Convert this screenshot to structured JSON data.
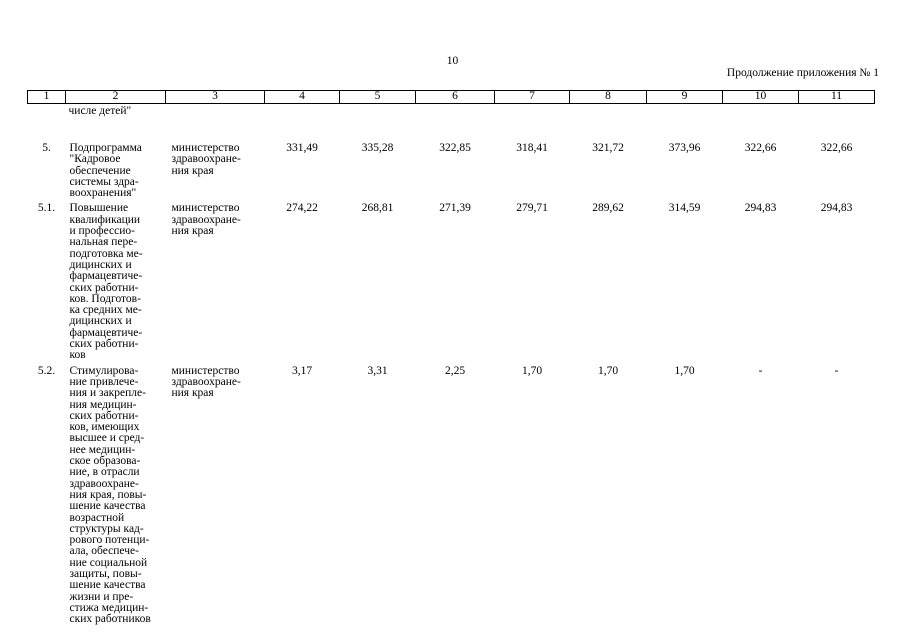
{
  "page": {
    "number": "10",
    "continuation_note": "Продолжение приложения № 1"
  },
  "table": {
    "column_numbers": [
      "1",
      "2",
      "3",
      "4",
      "5",
      "6",
      "7",
      "8",
      "9",
      "10",
      "11"
    ],
    "carryover_text": "числе детей\"",
    "rows": [
      {
        "num": "5.",
        "name": "Подпрограмма\n\"Кадровое\nобеспечение\nсистемы здра-\nвоохранения\"",
        "executor": "министерство\nздравоохране-\nния края",
        "values": [
          "331,49",
          "335,28",
          "322,85",
          "318,41",
          "321,72",
          "373,96",
          "322,66",
          "322,66"
        ]
      },
      {
        "num": "5.1.",
        "name": "Повышение\nквалификации\nи профессио-\nнальная пере-\nподготовка ме-\nдицинских и\nфармацевтиче-\nских работни-\nков. Подготов-\nка средних ме-\nдицинских и\nфармацевтиче-\nских работни-\nков",
        "executor": "министерство\nздравоохране-\nния края",
        "values": [
          "274,22",
          "268,81",
          "271,39",
          "279,71",
          "289,62",
          "314,59",
          "294,83",
          "294,83"
        ]
      },
      {
        "num": "5.2.",
        "name": "Стимулирова-\nние привлече-\nния и закрепле-\nния медицин-\nских работни-\nков, имеющих\nвысшее и сред-\nнее медицин-\nское образова-\nние, в отрасли\nздравоохране-\nния края, повы-\nшение качества\nвозрастной\nструктуры кад-\nрового потенци-\nала, обеспече-\nние социальной\nзащиты, повы-\nшение качества\nжизни и пре-\nстижа медицин-\nских работников",
        "executor": "министерство\nздравоохране-\nния края",
        "values": [
          "3,17",
          "3,31",
          "2,25",
          "1,70",
          "1,70",
          "1,70",
          "-",
          "-"
        ]
      }
    ]
  }
}
